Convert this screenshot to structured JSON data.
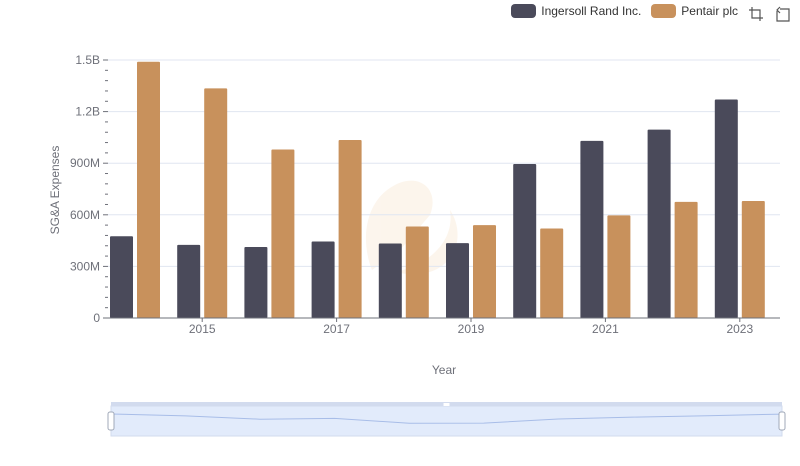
{
  "chart_data": {
    "type": "bar",
    "title": "",
    "xlabel": "Year",
    "ylabel": "SG&A Expenses",
    "categories": [
      "2014",
      "2015",
      "2016",
      "2017",
      "2018",
      "2019",
      "2020",
      "2021",
      "2022",
      "2023"
    ],
    "x_tick_labels": [
      "2015",
      "2017",
      "2019",
      "2021",
      "2023"
    ],
    "y_tick_labels": [
      "0",
      "300M",
      "600M",
      "900M",
      "1.2B",
      "1.5B"
    ],
    "y_tick_values": [
      0,
      300000000,
      600000000,
      900000000,
      1200000000,
      1500000000
    ],
    "ylim": [
      0,
      1500000000
    ],
    "grid": true,
    "legend_position": "top-right",
    "series": [
      {
        "name": "Ingersoll Rand Inc.",
        "color": "#4a4a5a",
        "values": [
          475000000,
          425000000,
          413000000,
          445000000,
          433000000,
          435000000,
          895000000,
          1030000000,
          1095000000,
          1270000000
        ]
      },
      {
        "name": "Pentair plc",
        "color": "#c8915c",
        "values": [
          1490000000,
          1335000000,
          980000000,
          1035000000,
          532000000,
          540000000,
          520000000,
          597000000,
          675000000,
          680000000
        ]
      }
    ]
  },
  "colors": {
    "grid": "#e0e6f1",
    "axis": "#6e7079",
    "zoom_fill": "#e2ebfb",
    "zoom_border": "#d2dbee",
    "zoom_line": "#a8bde8"
  },
  "toolbox": {
    "icons": [
      "zoom-select-icon",
      "zoom-reset-icon"
    ]
  }
}
